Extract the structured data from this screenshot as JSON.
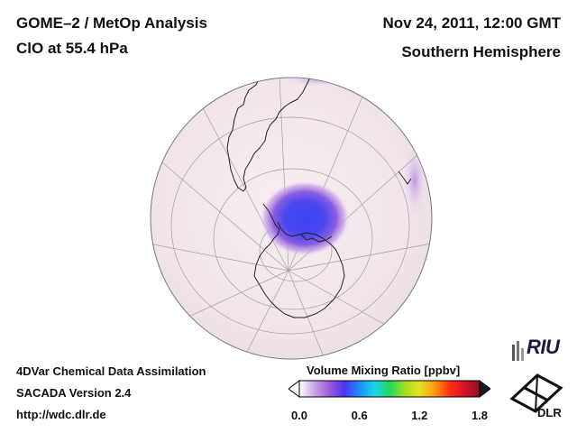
{
  "header": {
    "product": "GOME–2 / MetOp Analysis",
    "species_level": "ClO at 55.4 hPa",
    "datetime": "Nov 24, 2011, 12:00 GMT",
    "region": "Southern Hemisphere"
  },
  "footer": {
    "system": "4DVar Chemical Data Assimilation",
    "version": "SACADA Version 2.4",
    "url": "http://wdc.dlr.de"
  },
  "colorbar": {
    "title": "Volume Mixing Ratio [ppbv]",
    "ticks": [
      "0.0",
      "0.6",
      "1.2",
      "1.8"
    ],
    "range": [
      0.0,
      1.8
    ],
    "colors": [
      "#ffffff",
      "#c9a6e6",
      "#a15ad8",
      "#4a35f0",
      "#1e8cff",
      "#1ad6e8",
      "#20d860",
      "#9de020",
      "#e8e020",
      "#ff9a10",
      "#ff3010",
      "#d8102c",
      "#8a1020"
    ]
  },
  "map": {
    "projection": "orthographic",
    "center": "South Pole",
    "feature": "ClO maximum over Antarctica",
    "max_value_ppbv": 0.45,
    "background_color": "#f2e6ec",
    "coast_color": "#222222"
  },
  "logos": {
    "riu_label": "RIU",
    "dlr_label": "DLR"
  }
}
